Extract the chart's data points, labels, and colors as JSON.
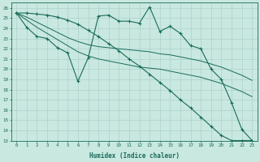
{
  "xlabel": "Humidex (Indice chaleur)",
  "bg_color": "#c8e8e0",
  "grid_color": "#a8ccc8",
  "line_color": "#1a6b5a",
  "xlim": [
    -0.5,
    23.5
  ],
  "ylim": [
    13,
    26.5
  ],
  "xticks": [
    0,
    1,
    2,
    3,
    4,
    5,
    6,
    7,
    8,
    9,
    10,
    11,
    12,
    13,
    14,
    15,
    16,
    17,
    18,
    19,
    20,
    21,
    22,
    23
  ],
  "yticks": [
    13,
    14,
    15,
    16,
    17,
    18,
    19,
    20,
    21,
    22,
    23,
    24,
    25,
    26
  ],
  "series_jagged_top": [
    25.5,
    24.1,
    23.2,
    23.0,
    22.1,
    21.6,
    18.8,
    21.1,
    25.2,
    25.3,
    24.7,
    24.7,
    24.5,
    26.1,
    23.7,
    24.2,
    23.5,
    22.3,
    22.0,
    20.0,
    19.0,
    16.7,
    14.1,
    13.0
  ],
  "series_linear1": [
    25.5,
    24.8,
    24.1,
    23.5,
    22.9,
    22.3,
    21.7,
    21.3,
    21.0,
    20.8,
    20.6,
    20.4,
    20.2,
    20.1,
    20.0,
    19.8,
    19.6,
    19.4,
    19.2,
    18.9,
    18.6,
    18.2,
    17.8,
    17.3
  ],
  "series_linear2": [
    25.5,
    25.1,
    24.6,
    24.1,
    23.6,
    23.1,
    22.7,
    22.4,
    22.2,
    22.1,
    22.0,
    21.9,
    21.8,
    21.7,
    21.5,
    21.4,
    21.2,
    21.0,
    20.8,
    20.5,
    20.2,
    19.8,
    19.4,
    18.9
  ],
  "series_steep": [
    25.5,
    25.5,
    25.4,
    25.3,
    25.1,
    24.8,
    24.4,
    23.8,
    23.2,
    22.5,
    21.8,
    21.0,
    20.3,
    19.5,
    18.7,
    17.9,
    17.0,
    16.2,
    15.3,
    14.4,
    13.5,
    13.0,
    13.0,
    13.0
  ]
}
